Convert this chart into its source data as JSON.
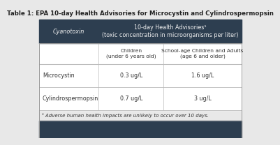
{
  "title": "Table 1: EPA 10-day Health Advisories for Microcystin and Cylindrospermopsin",
  "header_bg": "#2d3e50",
  "header_text_color": "#f0f0f0",
  "body_bg": "#ffffff",
  "footer_bg": "#2d3e50",
  "col1_header": "Cyanotoxin",
  "col2_header": "10-day Health Advisories¹\n(toxic concentration in microorganisms per liter)",
  "subheader_col2a": "Children\n(under 6 years old)",
  "subheader_col2b": "School-age Children and Adults\n(age 6 and older)",
  "rows": [
    [
      "Microcystin",
      "0.3 ug/L",
      "1.6 ug/L"
    ],
    [
      "Cylindrospermopsin",
      "0.7 ug/L",
      "3 ug/L"
    ]
  ],
  "footnote": "¹ Adverse human health impacts are unlikely to occur over 10 days.",
  "fig_bg": "#e8e8e8",
  "title_fontsize": 6.2,
  "header_fontsize": 5.8,
  "subheader_fontsize": 5.4,
  "body_fontsize": 5.8,
  "footnote_fontsize": 5.0,
  "outer_border_color": "#999999",
  "row_line_color": "#bbbbbb",
  "text_color": "#333333"
}
